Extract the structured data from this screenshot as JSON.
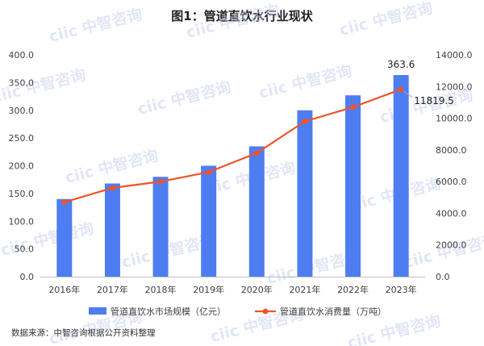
{
  "watermark_text": "ciic 中智咨询",
  "chart_data": {
    "type": "bar",
    "title": "图1：管道直饮水行业现状",
    "categories": [
      "2016年",
      "2017年",
      "2018年",
      "2019年",
      "2020年",
      "2021年",
      "2022年",
      "2023年"
    ],
    "series": [
      {
        "name": "管道直饮水市场规模（亿元）",
        "kind": "bar",
        "axis": "left",
        "color": "#4e7df2",
        "values": [
          140,
          168,
          180,
          200,
          235,
          300,
          327,
          363.6
        ]
      },
      {
        "name": "管道直饮水消费量（万吨）",
        "kind": "line",
        "axis": "right",
        "color": "#f0532a",
        "values": [
          4700,
          5600,
          6000,
          6600,
          7800,
          9800,
          10700,
          11819.5
        ]
      }
    ],
    "y_left": {
      "min": 0,
      "max": 400,
      "step": 50,
      "tick_labels": [
        "0.0",
        "50.0",
        "100.0",
        "150.0",
        "200.0",
        "250.0",
        "300.0",
        "350.0",
        "400.0"
      ]
    },
    "y_right": {
      "min": 0,
      "max": 14000,
      "step": 2000,
      "tick_labels": [
        "0.0",
        "2000.0",
        "4000.0",
        "6000.0",
        "8000.0",
        "10000.0",
        "12000.0",
        "14000.0"
      ]
    },
    "annotations": [
      {
        "series": 0,
        "index": 7,
        "text": "363.6"
      },
      {
        "series": 1,
        "index": 7,
        "text": "11819.5"
      }
    ],
    "grid": false,
    "legend": "bottom",
    "source": "数据来源：中智咨询根据公开资料整理"
  }
}
